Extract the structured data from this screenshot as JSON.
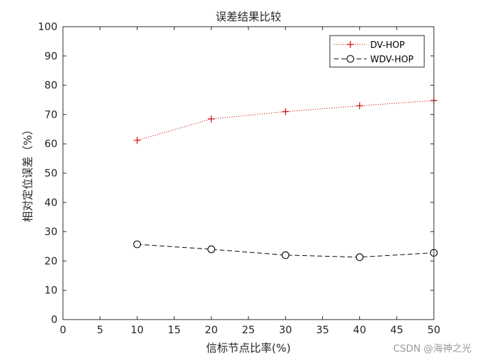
{
  "chart_data": {
    "type": "line",
    "title": "误差结果比较",
    "xlabel": "信标节点比率(%)",
    "ylabel": "相对定位误差（%）",
    "xlim": [
      0,
      50
    ],
    "ylim": [
      0,
      100
    ],
    "xticks": [
      "0",
      "5",
      "10",
      "15",
      "20",
      "25",
      "30",
      "35",
      "40",
      "45",
      "50"
    ],
    "yticks": [
      "0",
      "10",
      "20",
      "30",
      "40",
      "50",
      "60",
      "70",
      "80",
      "90",
      "100"
    ],
    "grid": false,
    "legend_position": "top-right",
    "x": [
      10,
      20,
      30,
      40,
      50
    ],
    "series": [
      {
        "name": "DV-HOP",
        "values": [
          61.2,
          68.5,
          71.0,
          73.0,
          74.8
        ],
        "color": "#cc0000",
        "line_style": "dotted",
        "marker": "plus"
      },
      {
        "name": "WDV-HOP",
        "values": [
          25.7,
          24.0,
          22.0,
          21.3,
          22.8
        ],
        "color": "#000000",
        "line_style": "dashed",
        "marker": "circle"
      }
    ]
  },
  "watermark": "CSDN @海神之光"
}
